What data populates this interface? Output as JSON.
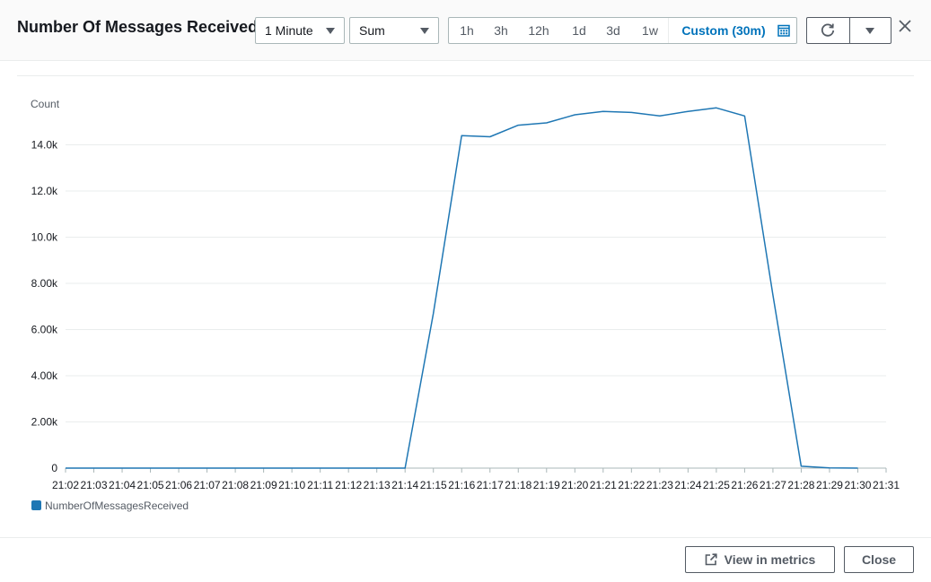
{
  "header": {
    "title": "Number Of Messages Received",
    "period": {
      "selected": "1 Minute"
    },
    "statistic": {
      "selected": "Sum"
    },
    "time_range": {
      "options": [
        "1h",
        "3h",
        "12h",
        "1d",
        "3d",
        "1w"
      ],
      "custom_label": "Custom (30m)",
      "active": "Custom (30m)"
    }
  },
  "footer": {
    "view_in_metrics_label": "View in metrics",
    "close_label": "Close"
  },
  "colors": {
    "series": "#1f77b4",
    "accent": "#0073bb",
    "grid": "#eaeded"
  },
  "chart_data": {
    "type": "line",
    "ylabel": "Count",
    "ylim": [
      0,
      16000
    ],
    "y_ticks": [
      0,
      2000,
      4000,
      6000,
      8000,
      10000,
      12000,
      14000
    ],
    "y_tick_labels": [
      "0",
      "2.00k",
      "4.00k",
      "6.00k",
      "8.00k",
      "10.0k",
      "12.0k",
      "14.0k"
    ],
    "x_tick_labels": [
      "21:02",
      "21:03",
      "21:04",
      "21:05",
      "21:06",
      "21:07",
      "21:08",
      "21:09",
      "21:10",
      "21:11",
      "21:12",
      "21:13",
      "21:14",
      "21:15",
      "21:16",
      "21:17",
      "21:18",
      "21:19",
      "21:20",
      "21:21",
      "21:22",
      "21:23",
      "21:24",
      "21:25",
      "21:26",
      "21:27",
      "21:28",
      "21:29",
      "21:30",
      "21:31"
    ],
    "legend_position": "bottom-left",
    "grid": true,
    "series": [
      {
        "name": "NumberOfMessagesReceived",
        "x": [
          "21:02",
          "21:03",
          "21:04",
          "21:05",
          "21:06",
          "21:07",
          "21:08",
          "21:09",
          "21:10",
          "21:11",
          "21:12",
          "21:13",
          "21:14",
          "21:15",
          "21:16",
          "21:17",
          "21:18",
          "21:19",
          "21:20",
          "21:21",
          "21:22",
          "21:23",
          "21:24",
          "21:25",
          "21:26",
          "21:27",
          "21:28",
          "21:29",
          "21:30"
        ],
        "values": [
          0,
          0,
          0,
          0,
          0,
          0,
          0,
          0,
          0,
          0,
          0,
          0,
          0,
          6700,
          14400,
          14350,
          14850,
          14950,
          15300,
          15450,
          15400,
          15250,
          15450,
          15600,
          15250,
          7500,
          80,
          10,
          0
        ]
      }
    ]
  }
}
